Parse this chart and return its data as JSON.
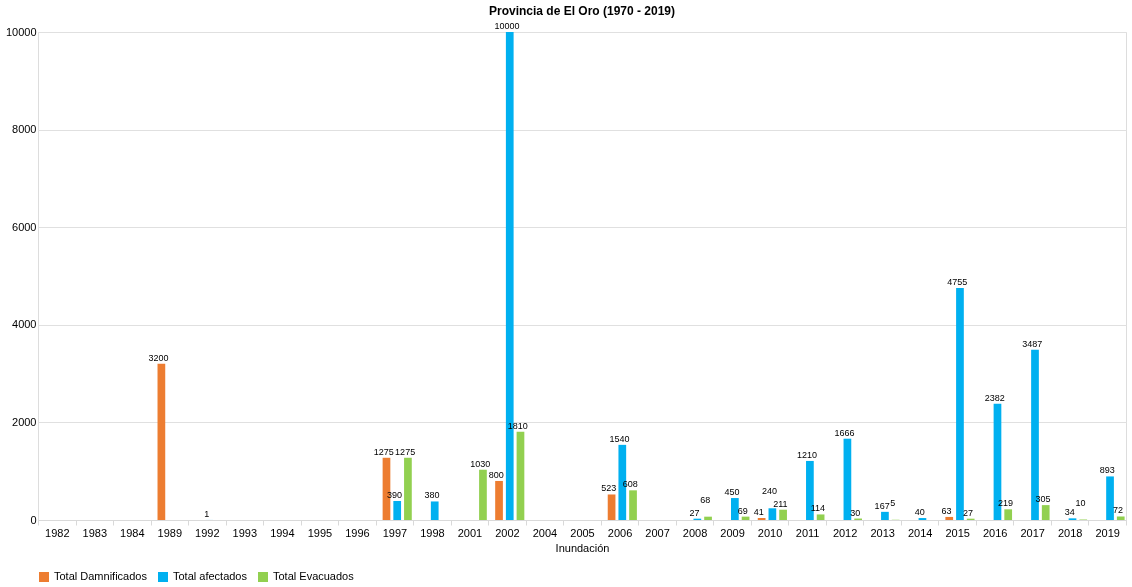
{
  "chart_data": {
    "type": "bar",
    "title": "Provincia de El Oro (1970 - 2019)",
    "xlabel": "Inundación",
    "categories": [
      "1982",
      "1983",
      "1984",
      "1989",
      "1992",
      "1993",
      "1994",
      "1995",
      "1996",
      "1997",
      "1998",
      "2001",
      "2002",
      "2004",
      "2005",
      "2006",
      "2007",
      "2008",
      "2009",
      "2010",
      "2011",
      "2012",
      "2013",
      "2014",
      "2015",
      "2016",
      "2017",
      "2018",
      "2019"
    ],
    "series": [
      {
        "name": "Total Damnificados",
        "color": "#ed7d31",
        "values": [
          null,
          null,
          null,
          3200,
          null,
          null,
          null,
          null,
          null,
          1275,
          null,
          null,
          800,
          null,
          null,
          523,
          null,
          null,
          null,
          41,
          null,
          null,
          null,
          null,
          63,
          null,
          null,
          null,
          null
        ]
      },
      {
        "name": "Total afectados",
        "color": "#00b0f0",
        "values": [
          null,
          null,
          null,
          null,
          1,
          null,
          null,
          null,
          null,
          390,
          380,
          null,
          10000,
          null,
          null,
          1540,
          null,
          27,
          450,
          240,
          1210,
          1666,
          167,
          40,
          4755,
          2382,
          3487,
          34,
          893
        ]
      },
      {
        "name": "Total Evacuados",
        "color": "#92d050",
        "values": [
          null,
          null,
          null,
          null,
          null,
          null,
          null,
          null,
          null,
          1275,
          null,
          1030,
          1810,
          null,
          null,
          608,
          null,
          68,
          69,
          211,
          114,
          30,
          5,
          null,
          27,
          219,
          305,
          10,
          72
        ]
      }
    ],
    "ylim": [
      0,
      10000
    ],
    "yticks": [
      0,
      2000,
      4000,
      6000,
      8000,
      10000
    ],
    "grid": "y",
    "legend": "bottom",
    "data_labels": true
  }
}
